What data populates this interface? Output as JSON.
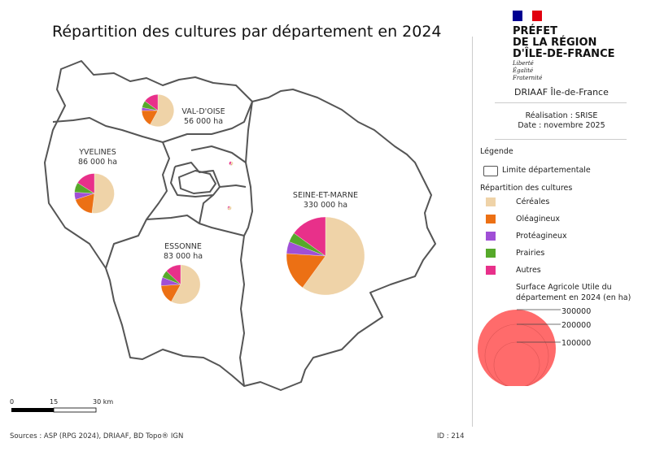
{
  "title": "Répartition des cultures par département en 2024",
  "departments": [
    {
      "name": "VAL-D'OISE",
      "sau": "56 000 ha",
      "sau_value": 56000,
      "shares": [
        58,
        17,
        3,
        7,
        15
      ]
    },
    {
      "name": "YVELINES",
      "sau": "86 000 ha",
      "sau_value": 86000,
      "shares": [
        52,
        18,
        6,
        8,
        16
      ]
    },
    {
      "name": "ESSONNE",
      "sau": "83 000 ha",
      "sau_value": 83000,
      "shares": [
        58,
        16,
        7,
        6,
        13
      ]
    },
    {
      "name": "SEINE-ET-MARNE",
      "sau": "330 000 ha",
      "sau_value": 330000,
      "shares": [
        60,
        16,
        5,
        4,
        15
      ]
    }
  ],
  "header": {
    "prefecture": [
      "PRÉFET",
      "DE LA RÉGION",
      "D'ÎLE-DE-FRANCE"
    ],
    "devise": [
      "Liberté",
      "Égalité",
      "Fraternité"
    ],
    "org": "DRIAAF Île-de-France",
    "realisation": "Réalisation : SRISE",
    "date": "Date : novembre 2025"
  },
  "legend": {
    "title": "Légende",
    "boundary": "Limite départementale",
    "cultures_title": "Répartition des cultures",
    "categories": [
      {
        "label": "Céréales",
        "color": "#efd3a8"
      },
      {
        "label": "Oléagineux",
        "color": "#ec7014"
      },
      {
        "label": "Protéagineux",
        "color": "#a04fd6"
      },
      {
        "label": "Prairies",
        "color": "#56a92a"
      },
      {
        "label": "Autres",
        "color": "#e8308a"
      }
    ],
    "size_title": "Surface Agricole Utile du département en 2024 (en ha)",
    "size_values": [
      "300000",
      "200000",
      "100000"
    ],
    "size_color": "#ff6b6b"
  },
  "scale": {
    "ticks": [
      "0",
      "15",
      "30 km"
    ]
  },
  "footer": {
    "sources": "Sources : ASP (RPG 2024), DRIAAF, BD Topo® IGN",
    "id": "ID : 214"
  }
}
